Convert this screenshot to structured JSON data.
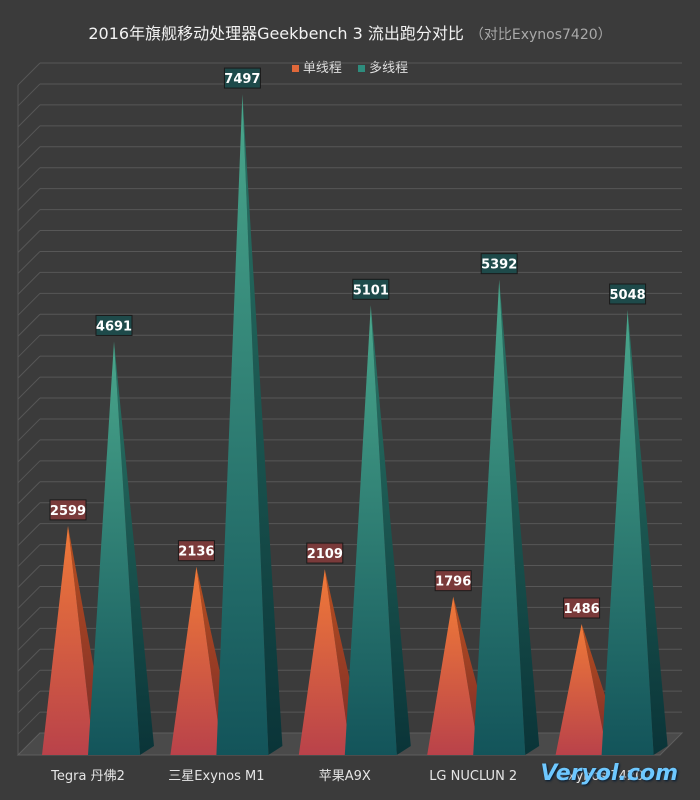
{
  "title": "2016年旗舰移动处理器Geekbench 3 流出跑分对比",
  "subtitle": "（对比Exynos7420）",
  "watermark": "Veryol.com",
  "colors": {
    "background": "#3b3b3b",
    "single": "#e0683a",
    "multi": "#2e8c7d",
    "single_label_bg": "#7a3a3a",
    "multi_label_bg": "#1e4a4a"
  },
  "chart_data": {
    "type": "bar",
    "title": "2016年旗舰移动处理器Geekbench 3 流出跑分对比",
    "subtitle": "（对比Exynos7420）",
    "categories": [
      "Tegra 丹佛2",
      "三星Exynos M1",
      "苹果A9X",
      "LG NUCLUN 2",
      "Exynos 7420"
    ],
    "series": [
      {
        "name": "单线程",
        "values": [
          2599,
          2136,
          2109,
          1796,
          1486
        ]
      },
      {
        "name": "多线程",
        "values": [
          4691,
          7497,
          5101,
          5392,
          5048
        ]
      }
    ],
    "ylim": [
      0,
      7600
    ],
    "grid": true,
    "legend": "top-center",
    "style": "3d-pyramid"
  }
}
